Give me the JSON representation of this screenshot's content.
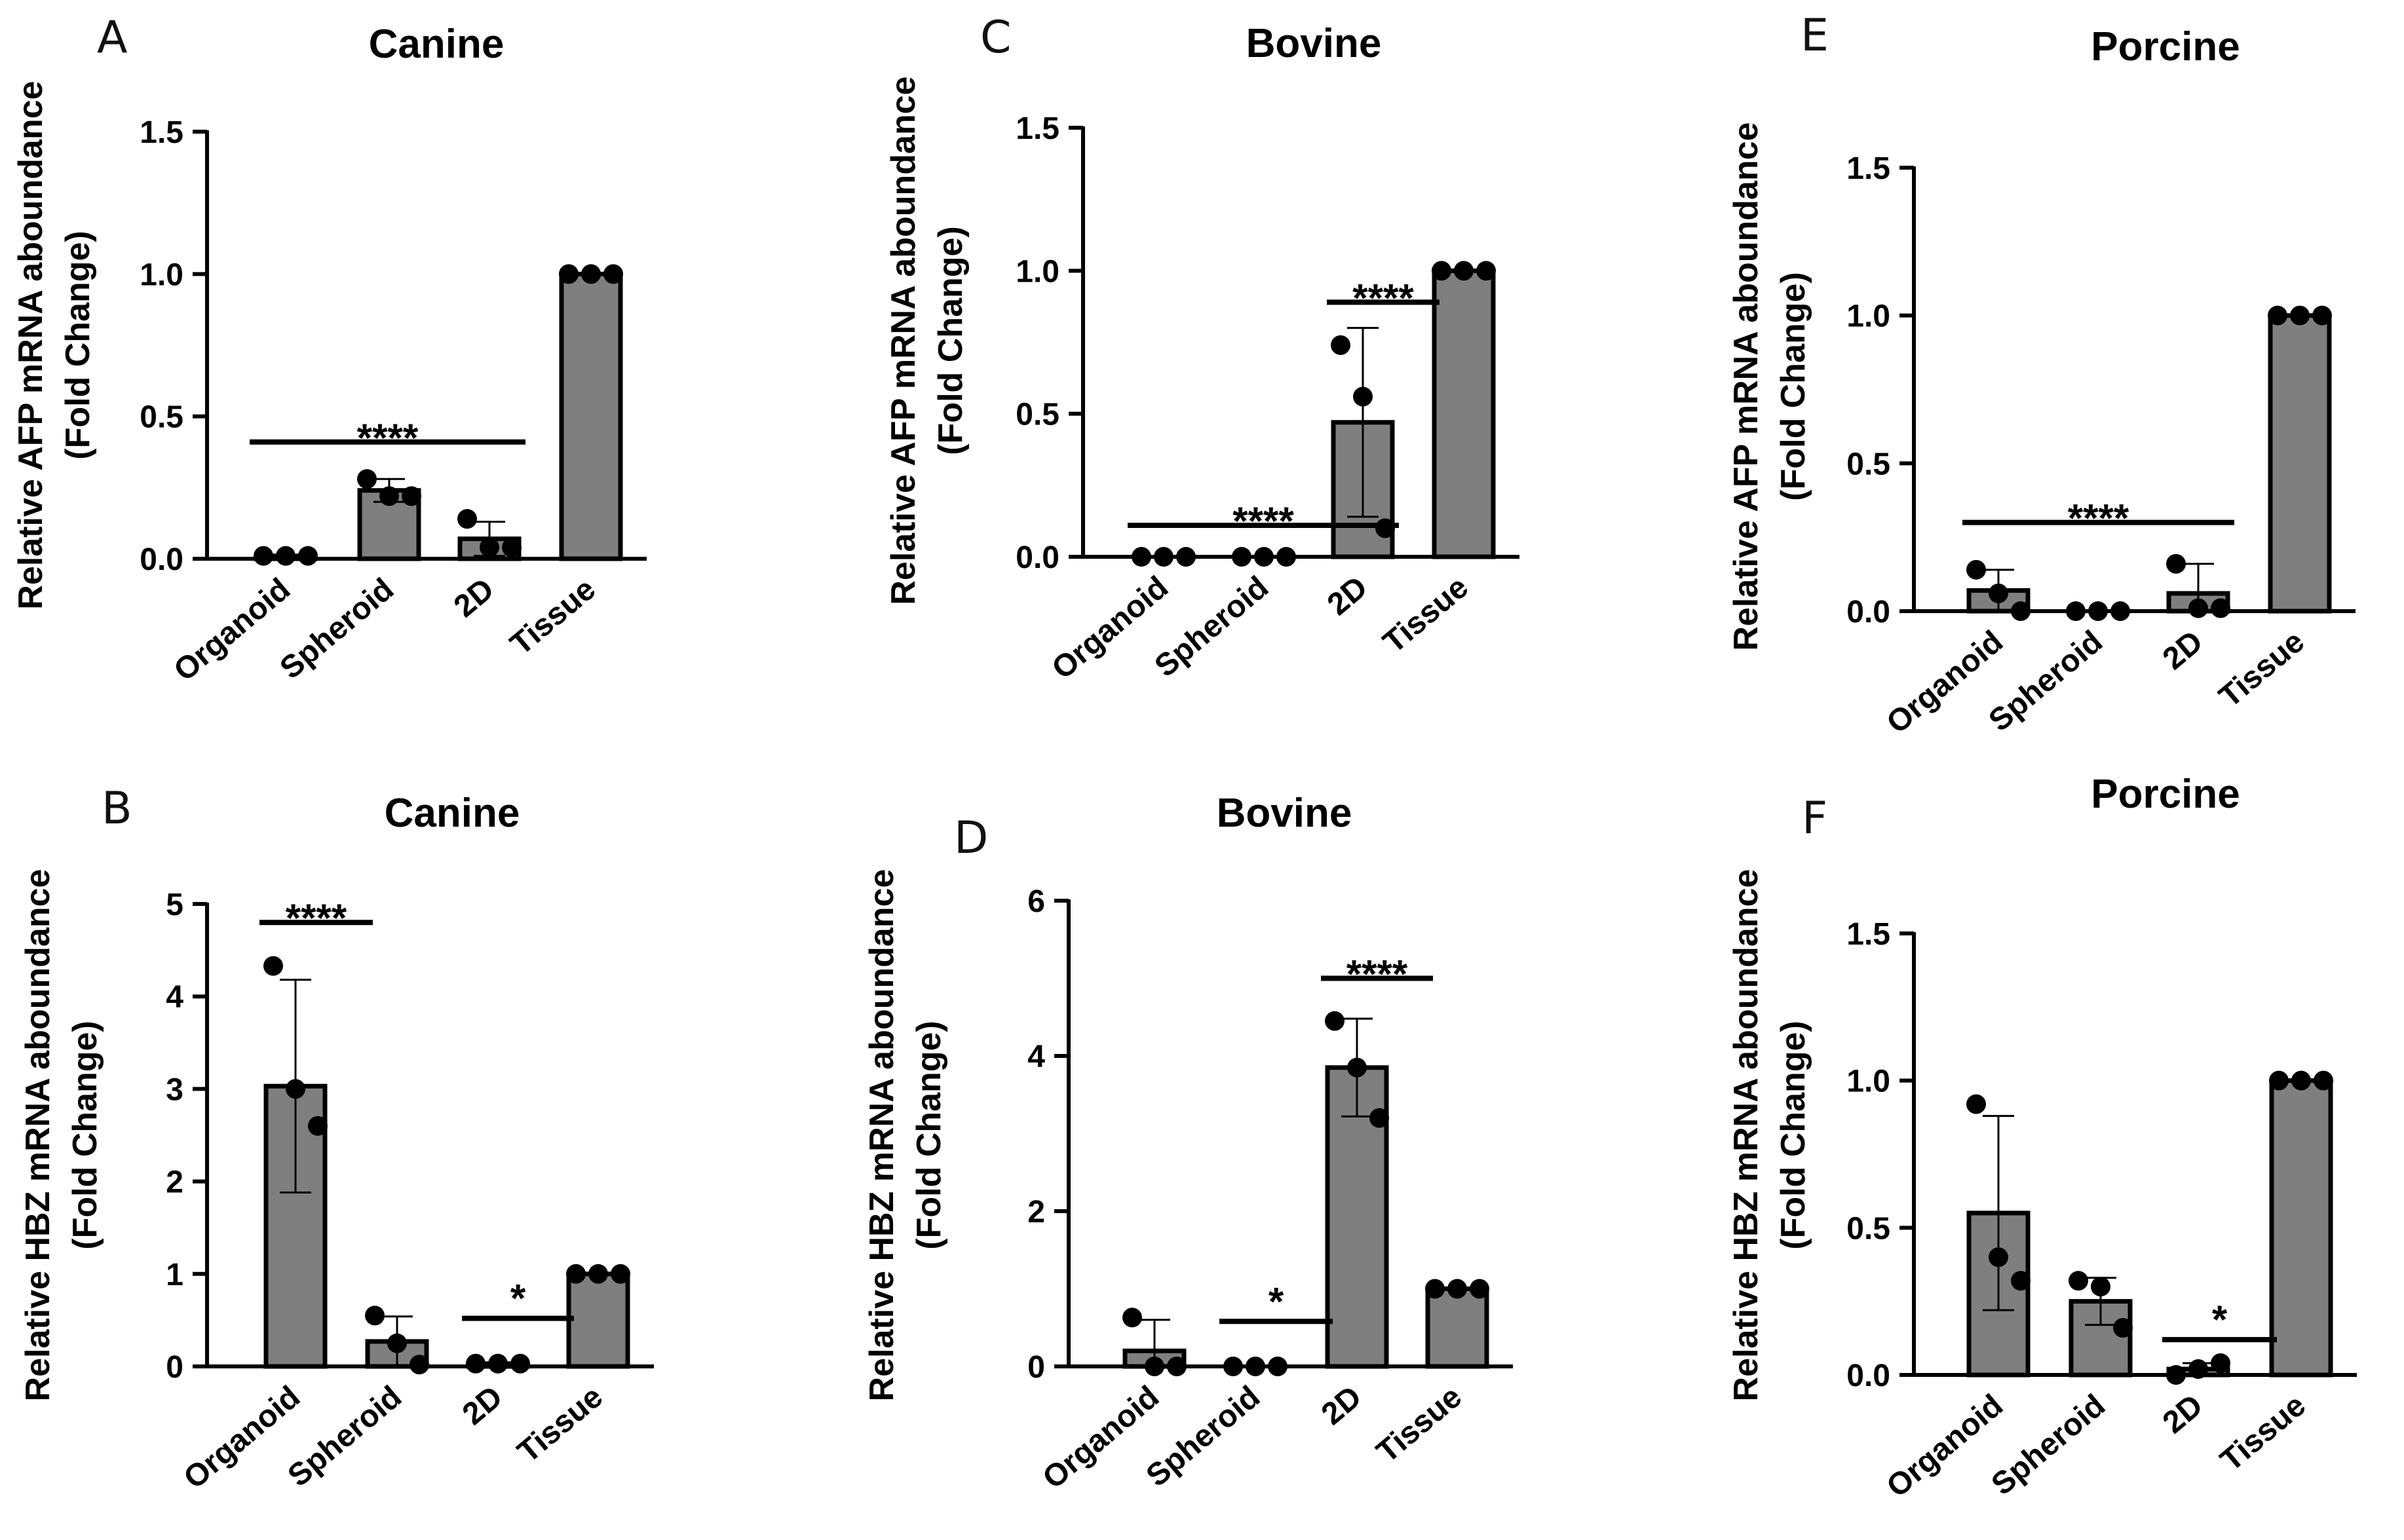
{
  "chart_data": [
    {
      "panel": "A",
      "type": "bar",
      "title": "Canine",
      "ylabel_lines": [
        "Relative AFP mRNA aboundance",
        "(Fold Change)"
      ],
      "categories": [
        "Organoid",
        "Spheroid",
        "2D",
        "Tissue"
      ],
      "ylim": [
        0,
        1.5
      ],
      "yticks": [
        "0.0",
        "0.5",
        "1.0",
        "1.5"
      ],
      "ytick_values": [
        0,
        0.5,
        1.0,
        1.5
      ],
      "values": [
        0.01,
        0.24,
        0.07,
        1.0
      ],
      "error": [
        0.0,
        0.04,
        0.06,
        0.0
      ],
      "points": [
        [
          0.01,
          0.01,
          0.01
        ],
        [
          0.28,
          0.22,
          0.22
        ],
        [
          0.14,
          0.04,
          0.04
        ],
        [
          1.0,
          1.0,
          1.0
        ]
      ],
      "significance": [
        {
          "label": "****",
          "from": 0,
          "to": 2,
          "y": 0.41
        }
      ]
    },
    {
      "panel": "B",
      "type": "bar",
      "title": "Canine",
      "ylabel_lines": [
        "Relative HBZ mRNA aboundance",
        "(Fold Change)"
      ],
      "categories": [
        "Organoid",
        "Spheroid",
        "2D",
        "Tissue"
      ],
      "ylim": [
        0,
        5
      ],
      "yticks": [
        "0",
        "1",
        "2",
        "3",
        "4",
        "5"
      ],
      "ytick_values": [
        0,
        1,
        2,
        3,
        4,
        5
      ],
      "values": [
        3.03,
        0.27,
        0.03,
        1.0
      ],
      "error": [
        1.15,
        0.27,
        0.0,
        0.0
      ],
      "points": [
        [
          4.33,
          3.0,
          2.6
        ],
        [
          0.55,
          0.25,
          0.02
        ],
        [
          0.03,
          0.03,
          0.03
        ],
        [
          1.0,
          1.0,
          1.0
        ]
      ],
      "significance": [
        {
          "label": "****",
          "from": 0,
          "to": 1,
          "y": 4.8
        },
        {
          "label": "*",
          "from": 2,
          "to": 3,
          "y": 0.52
        }
      ]
    },
    {
      "panel": "C",
      "type": "bar",
      "title": "Bovine",
      "ylabel_lines": [
        "Relative AFP mRNA aboundance",
        "(Fold Change)"
      ],
      "categories": [
        "Organoid",
        "Spheroid",
        "2D",
        "Tissue"
      ],
      "ylim": [
        0,
        1.5
      ],
      "yticks": [
        "0.0",
        "0.5",
        "1.0",
        "1.5"
      ],
      "ytick_values": [
        0,
        0.5,
        1.0,
        1.5
      ],
      "values": [
        0.0,
        0.0,
        0.47,
        1.0
      ],
      "error": [
        0.0,
        0.0,
        0.33,
        0.0
      ],
      "points": [
        [
          0.0,
          0.0,
          0.0
        ],
        [
          0.0,
          0.0,
          0.0
        ],
        [
          0.74,
          0.56,
          0.1
        ],
        [
          1.0,
          1.0,
          1.0
        ]
      ],
      "significance": [
        {
          "label": "****",
          "from": 0,
          "to": 2,
          "y": 0.11
        },
        {
          "label": "****",
          "from": 2,
          "to": 3,
          "y": 0.89
        }
      ]
    },
    {
      "panel": "D",
      "type": "bar",
      "title": "Bovine",
      "ylabel_lines": [
        "Relative HBZ mRNA aboundance",
        "(Fold Change)"
      ],
      "categories": [
        "Organoid",
        "Spheroid",
        "2D",
        "Tissue"
      ],
      "ylim": [
        0,
        6
      ],
      "yticks": [
        "0",
        "2",
        "4",
        "6"
      ],
      "ytick_values": [
        0,
        2,
        4,
        6
      ],
      "values": [
        0.2,
        0.0,
        3.85,
        1.0
      ],
      "error": [
        0.4,
        0.0,
        0.63,
        0.0
      ],
      "points": [
        [
          0.63,
          0.0,
          0.0
        ],
        [
          0.0,
          0.0,
          0.0
        ],
        [
          4.45,
          3.85,
          3.2
        ],
        [
          1.0,
          1.0,
          1.0
        ]
      ],
      "significance": [
        {
          "label": "*",
          "from": 1,
          "to": 2,
          "y": 0.58
        },
        {
          "label": "****",
          "from": 2,
          "to": 3,
          "y": 5.0
        }
      ]
    },
    {
      "panel": "E",
      "type": "bar",
      "title": "Porcine",
      "ylabel_lines": [
        "Relative AFP mRNA aboundance",
        "(Fold Change)"
      ],
      "categories": [
        "Organoid",
        "Spheroid",
        "2D",
        "Tissue"
      ],
      "ylim": [
        0,
        1.5
      ],
      "yticks": [
        "0.0",
        "0.5",
        "1.0",
        "1.5"
      ],
      "ytick_values": [
        0,
        0.5,
        1.0,
        1.5
      ],
      "values": [
        0.07,
        0.0,
        0.06,
        1.0
      ],
      "error": [
        0.07,
        0.0,
        0.1,
        0.0
      ],
      "points": [
        [
          0.14,
          0.06,
          0.0
        ],
        [
          0.0,
          0.0,
          0.0
        ],
        [
          0.16,
          0.01,
          0.01
        ],
        [
          1.0,
          1.0,
          1.0
        ]
      ],
      "significance": [
        {
          "label": "****",
          "from": 0,
          "to": 2,
          "y": 0.3
        }
      ]
    },
    {
      "panel": "F",
      "type": "bar",
      "title": "Porcine",
      "ylabel_lines": [
        "Relative HBZ mRNA aboundance",
        "(Fold Change)"
      ],
      "categories": [
        "Organoid",
        "Spheroid",
        "2D",
        "Tissue"
      ],
      "ylim": [
        0,
        1.5
      ],
      "yticks": [
        "0.0",
        "0.5",
        "1.0",
        "1.5"
      ],
      "ytick_values": [
        0,
        0.5,
        1.0,
        1.5
      ],
      "values": [
        0.55,
        0.25,
        0.02,
        1.0
      ],
      "error": [
        0.33,
        0.08,
        0.02,
        0.0
      ],
      "points": [
        [
          0.92,
          0.4,
          0.32
        ],
        [
          0.32,
          0.3,
          0.16
        ],
        [
          0.0,
          0.02,
          0.04
        ],
        [
          1.0,
          1.0,
          1.0
        ]
      ],
      "significance": [
        {
          "label": "*",
          "from": 2,
          "to": 3,
          "y": 0.12
        }
      ]
    }
  ]
}
